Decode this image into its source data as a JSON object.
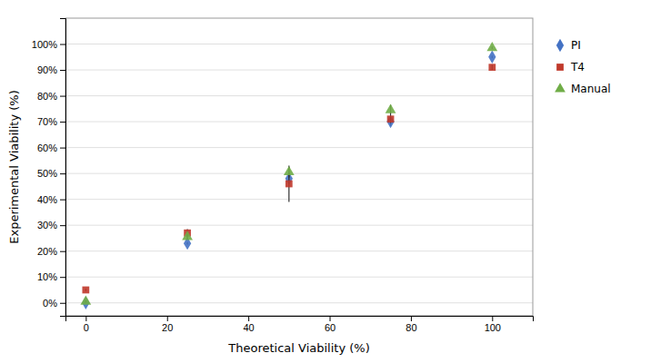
{
  "chart_data": {
    "type": "scatter",
    "xlabel": "Theoretical Viability (%)",
    "ylabel": "Experimental Viability (%)",
    "series": [
      {
        "name": "PI",
        "color": "#4472c4",
        "marker": "diamond",
        "x": [
          0,
          25,
          50,
          75,
          100
        ],
        "values": [
          0.0,
          23.0,
          48.0,
          70.0,
          95.0
        ],
        "errors": [
          0.0,
          0.5,
          2.0,
          1.5,
          0.5
        ]
      },
      {
        "name": "T4",
        "color": "#c0392b",
        "marker": "square",
        "x": [
          0,
          25,
          50,
          75,
          100
        ],
        "values": [
          5.0,
          27.0,
          46.0,
          71.0,
          91.0
        ],
        "errors": [
          0.5,
          1.5,
          7.0,
          1.5,
          1.0
        ]
      },
      {
        "name": "Manual",
        "color": "#70ad47",
        "marker": "triangle",
        "x": [
          0,
          25,
          50,
          75,
          100
        ],
        "values": [
          0.5,
          25.5,
          50.5,
          74.5,
          98.5
        ],
        "errors": [
          0.5,
          1.0,
          2.0,
          2.0,
          0.5
        ]
      }
    ],
    "xlim": [
      -5,
      110
    ],
    "ylim": [
      -5,
      110
    ],
    "xticks": [
      0,
      20,
      40,
      60,
      80,
      100
    ],
    "yticks": [
      {
        "value": 0,
        "label": "0%"
      },
      {
        "value": 10,
        "label": "10%"
      },
      {
        "value": 20,
        "label": "20%"
      },
      {
        "value": 30,
        "label": "30%"
      },
      {
        "value": 40,
        "label": "40%"
      },
      {
        "value": 50,
        "label": "50%"
      },
      {
        "value": 60,
        "label": "60%"
      },
      {
        "value": 70,
        "label": "70%"
      },
      {
        "value": 80,
        "label": "80%"
      },
      {
        "value": 90,
        "label": "90%"
      },
      {
        "value": 100,
        "label": "100%"
      }
    ],
    "grid": "y",
    "legend": "right"
  }
}
